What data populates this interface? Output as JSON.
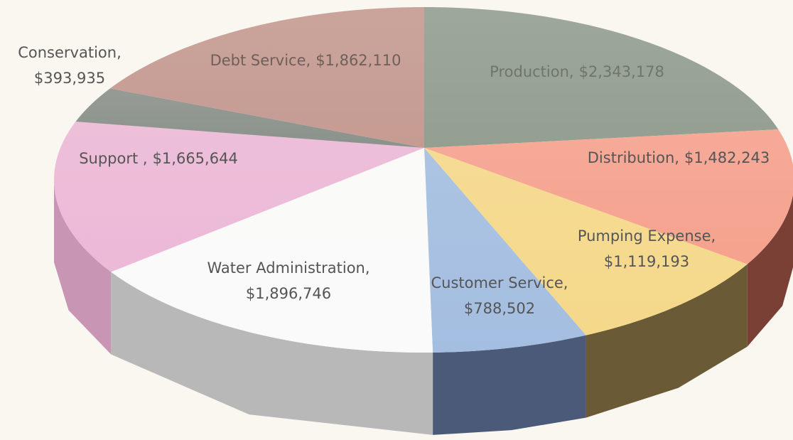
{
  "chart_data": {
    "type": "pie",
    "categories": [
      "Production,",
      "Distribution,",
      "Pumping Expense,",
      "Customer Service,",
      "Water Administration,",
      "Support ,",
      "Conservation,",
      "Debt Service,"
    ],
    "values": [
      2343178,
      1482243,
      1119193,
      788502,
      1896746,
      1665644,
      393935,
      1862110
    ],
    "value_labels": [
      "$2,343,178",
      "$1,482,243",
      "$1,119,193",
      "$788,502",
      "$1,896,746",
      "$1,665,644",
      "$393,935",
      "$1,862,110"
    ],
    "colors": [
      "#949f91",
      "#f5a28e",
      "#f5d88a",
      "#a4bee1",
      "#fafafa",
      "#ecb9d7",
      "#8b928b",
      "#c59b92"
    ],
    "side_colors": [
      "#5f665d",
      "#7a3f35",
      "#6a5a35",
      "#4a5a78",
      "#b8b8b8",
      "#c995b5",
      "#555a55",
      "#7d5a53"
    ]
  }
}
